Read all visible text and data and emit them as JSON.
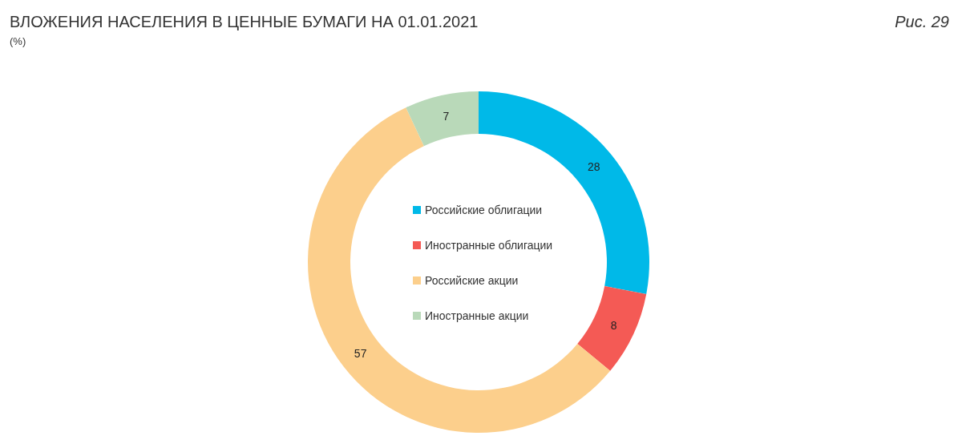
{
  "chart_data": {
    "type": "donut",
    "title": "ВЛОЖЕНИЯ НАСЕЛЕНИЯ В ЦЕННЫЕ БУМАГИ НА 01.01.2021",
    "subtitle": "(%)",
    "annotations": [
      "Рис. 29"
    ],
    "categories": [
      "Российские облигации",
      "Иностранные облигации",
      "Российские акции",
      "Иностранные акции"
    ],
    "values": [
      28,
      8,
      57,
      7
    ],
    "colors": [
      "#00b9e8",
      "#f45a55",
      "#fccf8c",
      "#b9d9b9"
    ],
    "data_labels": true,
    "legend": "center"
  }
}
